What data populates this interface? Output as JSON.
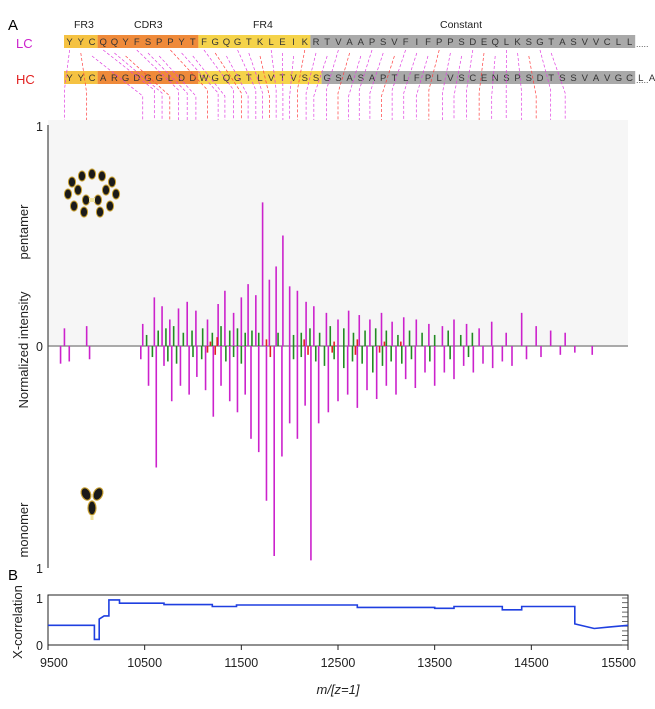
{
  "panels": {
    "a_label": "A",
    "b_label": "B"
  },
  "sequence": {
    "regions": [
      "FR3",
      "CDR3",
      "FR4",
      "Constant"
    ],
    "lc": {
      "label": "LC",
      "label_color": "#cc22cc",
      "residues": "YYCQQYFSPPYTFGQGTKLEIKRTVAAPSVFIFPPSDEQLKSGTASVVCLL",
      "segments": [
        {
          "region": "FR3",
          "start": 0,
          "end": 3,
          "color": "#f5c242"
        },
        {
          "region": "CDR3",
          "start": 3,
          "end": 12,
          "color": "#ef8a3a"
        },
        {
          "region": "FR4",
          "start": 12,
          "end": 22,
          "color": "#f5d34a"
        },
        {
          "region": "Constant",
          "start": 22,
          "end": 51,
          "color": "#a9a9a9"
        }
      ],
      "ellipsis": "....."
    },
    "hc": {
      "label": "HC",
      "label_color": "#e22222",
      "residues": "YYCARGDGGLDDWGQGTLVTVSSGSASAPTLFPLVSCENSPSDTSSVAVGCLA",
      "segments": [
        {
          "region": "FR3",
          "start": 0,
          "end": 3,
          "color": "#f5c242"
        },
        {
          "region": "CDR3",
          "start": 3,
          "end": 12,
          "color": "#ef8a3a"
        },
        {
          "region": "FR4",
          "start": 12,
          "end": 23,
          "color": "#f5d34a"
        },
        {
          "region": "Constant",
          "start": 23,
          "end": 51,
          "color": "#a9a9a9"
        }
      ],
      "ellipsis": "....."
    }
  },
  "icons": {
    "pentamer": "igm-pentamer-icon",
    "monomer": "antibody-monomer-icon"
  },
  "colors": {
    "lc_fragment": "#cc22cc",
    "hc_fragment": "#e22222",
    "other_fragment": "#228b22",
    "xcorr_line": "#1f3fe0",
    "link_lc": "#e040e0",
    "link_hc": "#ff4040"
  },
  "chart_data": [
    {
      "type": "bar",
      "panel": "A",
      "ylabel": "Normalized intensity",
      "top_label": "pentamer",
      "bottom_label": "monomer",
      "y_ticks": {
        "top": "1",
        "zero": "0",
        "bottom": "1"
      },
      "ylim": [
        -1,
        1
      ],
      "xlim": [
        9500,
        15500
      ],
      "series": [
        {
          "legend": "pentamer",
          "color_key": "lc",
          "points": [
            [
              9670,
              0.08
            ],
            [
              9900,
              0.09
            ],
            [
              10480,
              0.1
            ],
            [
              10600,
              0.22
            ],
            [
              10680,
              0.18
            ],
            [
              10760,
              0.12
            ],
            [
              10850,
              0.17
            ],
            [
              10940,
              0.2
            ],
            [
              11030,
              0.16
            ],
            [
              11150,
              0.12
            ],
            [
              11260,
              0.19
            ],
            [
              11330,
              0.25
            ],
            [
              11420,
              0.15
            ],
            [
              11500,
              0.22
            ],
            [
              11570,
              0.28
            ],
            [
              11650,
              0.23
            ],
            [
              11720,
              0.65
            ],
            [
              11790,
              0.3
            ],
            [
              11860,
              0.36
            ],
            [
              11930,
              0.5
            ],
            [
              12000,
              0.27
            ],
            [
              12080,
              0.25
            ],
            [
              12170,
              0.2
            ],
            [
              12250,
              0.18
            ],
            [
              12380,
              0.15
            ],
            [
              12500,
              0.12
            ],
            [
              12610,
              0.16
            ],
            [
              12720,
              0.14
            ],
            [
              12830,
              0.12
            ],
            [
              12950,
              0.15
            ],
            [
              13060,
              0.11
            ],
            [
              13180,
              0.13
            ],
            [
              13310,
              0.12
            ],
            [
              13440,
              0.1
            ],
            [
              13580,
              0.09
            ],
            [
              13700,
              0.12
            ],
            [
              13830,
              0.1
            ],
            [
              13960,
              0.08
            ],
            [
              14090,
              0.11
            ],
            [
              14240,
              0.06
            ],
            [
              14400,
              0.15
            ],
            [
              14550,
              0.09
            ],
            [
              14700,
              0.07
            ],
            [
              14850,
              0.06
            ]
          ]
        },
        {
          "legend": "pentamer",
          "color_key": "other",
          "points": [
            [
              10520,
              0.05
            ],
            [
              10640,
              0.07
            ],
            [
              10720,
              0.08
            ],
            [
              10800,
              0.09
            ],
            [
              10900,
              0.06
            ],
            [
              10990,
              0.07
            ],
            [
              11100,
              0.08
            ],
            [
              11200,
              0.06
            ],
            [
              11290,
              0.09
            ],
            [
              11380,
              0.07
            ],
            [
              11460,
              0.08
            ],
            [
              11540,
              0.06
            ],
            [
              11610,
              0.07
            ],
            [
              11680,
              0.06
            ],
            [
              11880,
              0.06
            ],
            [
              12040,
              0.05
            ],
            [
              12120,
              0.06
            ],
            [
              12210,
              0.08
            ],
            [
              12310,
              0.06
            ],
            [
              12420,
              0.09
            ],
            [
              12560,
              0.08
            ],
            [
              12660,
              0.06
            ],
            [
              12780,
              0.07
            ],
            [
              12890,
              0.08
            ],
            [
              13000,
              0.07
            ],
            [
              13120,
              0.05
            ],
            [
              13240,
              0.07
            ],
            [
              13370,
              0.06
            ],
            [
              13500,
              0.05
            ],
            [
              13640,
              0.07
            ],
            [
              13770,
              0.05
            ],
            [
              13890,
              0.06
            ]
          ]
        },
        {
          "legend": "pentamer",
          "color_key": "hc",
          "points": [
            [
              11180,
              0.02
            ],
            [
              11250,
              0.04
            ],
            [
              11760,
              0.03
            ],
            [
              12150,
              0.03
            ],
            [
              12460,
              0.02
            ],
            [
              12700,
              0.03
            ],
            [
              12980,
              0.02
            ],
            [
              13150,
              0.02
            ]
          ]
        },
        {
          "legend": "monomer",
          "color_key": "lc",
          "points": [
            [
              9630,
              0.08
            ],
            [
              9720,
              0.07
            ],
            [
              9930,
              0.06
            ],
            [
              10460,
              0.06
            ],
            [
              10540,
              0.18
            ],
            [
              10620,
              0.55
            ],
            [
              10700,
              0.09
            ],
            [
              10780,
              0.25
            ],
            [
              10870,
              0.18
            ],
            [
              10960,
              0.22
            ],
            [
              11040,
              0.14
            ],
            [
              11130,
              0.2
            ],
            [
              11210,
              0.32
            ],
            [
              11290,
              0.18
            ],
            [
              11380,
              0.25
            ],
            [
              11460,
              0.3
            ],
            [
              11540,
              0.22
            ],
            [
              11600,
              0.42
            ],
            [
              11680,
              0.48
            ],
            [
              11760,
              0.7
            ],
            [
              11840,
              0.95
            ],
            [
              11920,
              0.5
            ],
            [
              12000,
              0.35
            ],
            [
              12080,
              0.42
            ],
            [
              12160,
              0.27
            ],
            [
              12220,
              0.97
            ],
            [
              12300,
              0.35
            ],
            [
              12400,
              0.3
            ],
            [
              12500,
              0.25
            ],
            [
              12600,
              0.22
            ],
            [
              12700,
              0.28
            ],
            [
              12800,
              0.2
            ],
            [
              12900,
              0.24
            ],
            [
              13000,
              0.18
            ],
            [
              13100,
              0.22
            ],
            [
              13200,
              0.15
            ],
            [
              13300,
              0.19
            ],
            [
              13400,
              0.12
            ],
            [
              13500,
              0.18
            ],
            [
              13600,
              0.12
            ],
            [
              13700,
              0.15
            ],
            [
              13800,
              0.09
            ],
            [
              13900,
              0.12
            ],
            [
              14000,
              0.08
            ],
            [
              14100,
              0.1
            ],
            [
              14200,
              0.07
            ],
            [
              14300,
              0.09
            ],
            [
              14450,
              0.06
            ],
            [
              14600,
              0.05
            ],
            [
              14800,
              0.04
            ],
            [
              14950,
              0.03
            ],
            [
              15130,
              0.04
            ]
          ]
        },
        {
          "legend": "monomer",
          "color_key": "other",
          "points": [
            [
              10580,
              0.05
            ],
            [
              10740,
              0.07
            ],
            [
              10830,
              0.08
            ],
            [
              11000,
              0.05
            ],
            [
              11090,
              0.06
            ],
            [
              11340,
              0.07
            ],
            [
              11420,
              0.05
            ],
            [
              11500,
              0.08
            ],
            [
              12040,
              0.06
            ],
            [
              12120,
              0.05
            ],
            [
              12270,
              0.07
            ],
            [
              12360,
              0.09
            ],
            [
              12460,
              0.06
            ],
            [
              12560,
              0.1
            ],
            [
              12650,
              0.07
            ],
            [
              12750,
              0.08
            ],
            [
              12860,
              0.12
            ],
            [
              12960,
              0.09
            ],
            [
              13050,
              0.07
            ],
            [
              13160,
              0.08
            ],
            [
              13260,
              0.06
            ],
            [
              13450,
              0.07
            ],
            [
              13660,
              0.06
            ],
            [
              13850,
              0.05
            ]
          ]
        },
        {
          "legend": "monomer",
          "color_key": "hc",
          "points": [
            [
              11150,
              0.03
            ],
            [
              11230,
              0.04
            ],
            [
              11800,
              0.05
            ],
            [
              12190,
              0.04
            ],
            [
              12440,
              0.03
            ],
            [
              12680,
              0.04
            ],
            [
              12930,
              0.03
            ]
          ]
        }
      ]
    },
    {
      "type": "line",
      "panel": "B",
      "xlabel": "m/[z=1]",
      "ylabel": "X-correlation",
      "xlim": [
        9500,
        15500
      ],
      "ylim": [
        0,
        1
      ],
      "x_ticks": [
        9500,
        10500,
        11500,
        12500,
        13500,
        14500,
        15500
      ],
      "y_ticks": [
        "0",
        "1"
      ],
      "points": [
        [
          9500,
          0.42
        ],
        [
          9980,
          0.42
        ],
        [
          9980,
          0.12
        ],
        [
          10030,
          0.12
        ],
        [
          10030,
          0.55
        ],
        [
          10080,
          0.62
        ],
        [
          10130,
          0.62
        ],
        [
          10130,
          0.96
        ],
        [
          10240,
          0.96
        ],
        [
          10240,
          0.89
        ],
        [
          10700,
          0.89
        ],
        [
          10700,
          0.86
        ],
        [
          11200,
          0.86
        ],
        [
          11200,
          0.82
        ],
        [
          11450,
          0.82
        ],
        [
          11450,
          0.85
        ],
        [
          12700,
          0.85
        ],
        [
          12700,
          0.8
        ],
        [
          13500,
          0.8
        ],
        [
          13500,
          0.78
        ],
        [
          13700,
          0.78
        ],
        [
          13700,
          0.82
        ],
        [
          14200,
          0.82
        ],
        [
          14200,
          0.75
        ],
        [
          14400,
          0.75
        ],
        [
          14400,
          0.82
        ],
        [
          14950,
          0.82
        ],
        [
          14950,
          0.45
        ],
        [
          15150,
          0.35
        ],
        [
          15300,
          0.38
        ],
        [
          15500,
          0.42
        ]
      ]
    }
  ]
}
